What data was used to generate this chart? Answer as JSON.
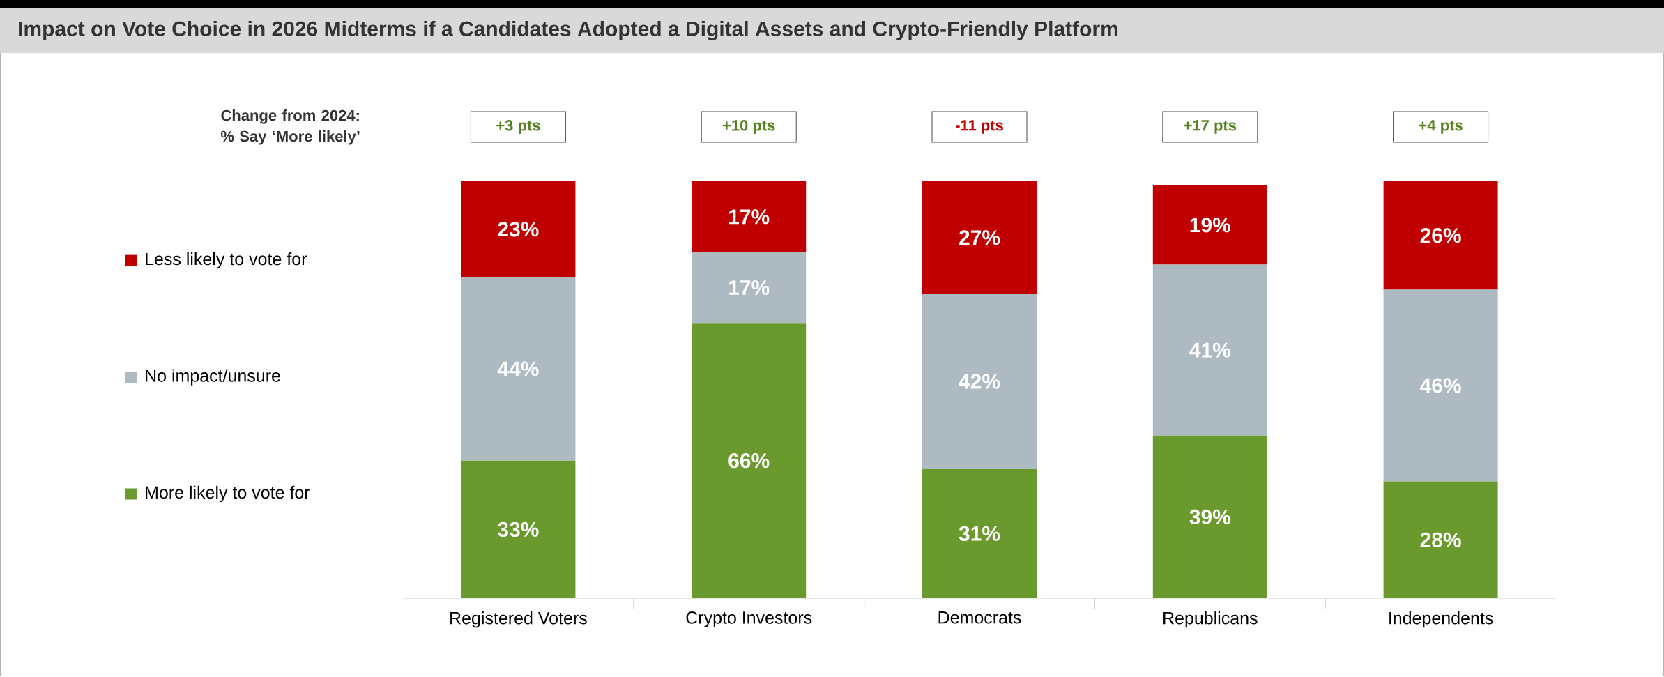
{
  "chart_data": {
    "type": "bar",
    "stacked": true,
    "title": "Impact on Vote Choice in 2026 Midterms if a Candidates Adopted a Digital Assets and Crypto-Friendly Platform",
    "categories": [
      "Registered Voters",
      "Crypto Investors",
      "Democrats",
      "Republicans",
      "Independents"
    ],
    "series": [
      {
        "name": "More likely to vote for",
        "color": "#6a992e",
        "values": [
          33,
          66,
          31,
          39,
          28
        ],
        "value_labels": [
          "33%",
          "66%",
          "31%",
          "39%",
          "28%"
        ]
      },
      {
        "name": "No impact/unsure",
        "color": "#aebac1",
        "values": [
          44,
          17,
          42,
          41,
          46
        ],
        "value_labels": [
          "44%",
          "17%",
          "42%",
          "41%",
          "46%"
        ]
      },
      {
        "name": "Less likely to vote for",
        "color": "#c00000",
        "values": [
          23,
          17,
          27,
          19,
          26
        ],
        "value_labels": [
          "23%",
          "17%",
          "27%",
          "19%",
          "26%"
        ]
      }
    ],
    "legend": "left",
    "annotations": [
      "Change from 2024: % Say ‘More likely’",
      "+3 pts",
      "+10 pts",
      "-11 pts",
      "+17 pts",
      "+4 pts"
    ]
  }
}
